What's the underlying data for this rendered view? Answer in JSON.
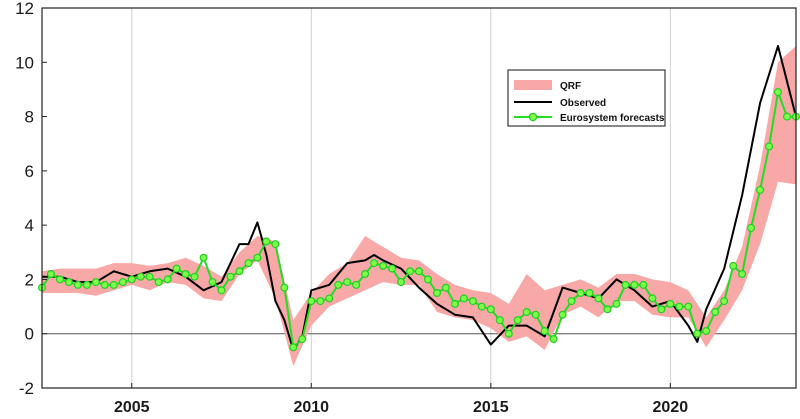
{
  "chart_data": {
    "type": "line",
    "title": "",
    "xlabel": "",
    "ylabel": "",
    "xlim": [
      2002.5,
      2023.5
    ],
    "ylim": [
      -2,
      12
    ],
    "yticks": [
      -2,
      0,
      2,
      4,
      6,
      8,
      10,
      12
    ],
    "xticks": [
      2005,
      2010,
      2015,
      2020
    ],
    "grid": "vertical",
    "legend_position": "upper-right",
    "colors": {
      "band": "#f9a8a8",
      "observed": "#000000",
      "forecast": "#22dd22",
      "forecast_marker": "#7cff4a"
    },
    "series": [
      {
        "name": "QRF",
        "kind": "band",
        "x": [
          2002.5,
          2003.0,
          2003.5,
          2004.0,
          2004.5,
          2005.0,
          2005.5,
          2006.0,
          2006.5,
          2007.0,
          2007.5,
          2008.0,
          2008.5,
          2009.0,
          2009.5,
          2010.0,
          2010.5,
          2011.0,
          2011.5,
          2012.0,
          2012.5,
          2013.0,
          2013.5,
          2014.0,
          2014.5,
          2015.0,
          2015.5,
          2016.0,
          2016.5,
          2017.0,
          2017.5,
          2018.0,
          2018.5,
          2019.0,
          2019.5,
          2020.0,
          2020.5,
          2021.0,
          2021.5,
          2022.0,
          2022.5,
          2023.0,
          2023.5
        ],
        "lower": [
          1.5,
          1.5,
          1.5,
          1.4,
          1.6,
          1.8,
          1.6,
          1.9,
          1.8,
          1.3,
          1.2,
          2.2,
          2.7,
          1.3,
          -1.2,
          0.3,
          1.0,
          1.3,
          1.6,
          1.9,
          1.8,
          1.8,
          0.8,
          0.6,
          0.5,
          0.2,
          -0.3,
          -0.1,
          -0.6,
          0.7,
          1.0,
          0.6,
          1.2,
          1.2,
          0.7,
          0.6,
          0.6,
          -0.5,
          0.5,
          1.6,
          3.3,
          5.6,
          5.5
        ],
        "upper": [
          2.3,
          2.4,
          2.4,
          2.4,
          2.6,
          2.6,
          2.5,
          2.6,
          2.8,
          2.5,
          2.1,
          3.0,
          3.6,
          3.4,
          0.5,
          1.5,
          2.2,
          2.6,
          3.6,
          3.2,
          2.8,
          2.7,
          2.2,
          1.8,
          1.6,
          1.5,
          1.1,
          2.2,
          1.6,
          1.8,
          2.0,
          1.7,
          2.2,
          2.2,
          2.0,
          1.9,
          1.6,
          0.6,
          1.6,
          3.2,
          6.2,
          10.0,
          10.6
        ]
      },
      {
        "name": "Observed",
        "x": [
          2002.5,
          2003.0,
          2003.5,
          2004.0,
          2004.5,
          2005.0,
          2005.5,
          2006.0,
          2006.5,
          2007.0,
          2007.5,
          2008.0,
          2008.25,
          2008.5,
          2008.75,
          2009.0,
          2009.25,
          2009.5,
          2009.75,
          2010.0,
          2010.5,
          2011.0,
          2011.5,
          2011.75,
          2012.0,
          2012.5,
          2013.0,
          2013.5,
          2014.0,
          2014.5,
          2015.0,
          2015.5,
          2016.0,
          2016.5,
          2017.0,
          2017.5,
          2018.0,
          2018.5,
          2019.0,
          2019.5,
          2020.0,
          2020.5,
          2020.75,
          2021.0,
          2021.5,
          2022.0,
          2022.5,
          2023.0,
          2023.5
        ],
        "values": [
          2.1,
          2.1,
          1.9,
          1.9,
          2.3,
          2.1,
          2.3,
          2.4,
          2.1,
          1.6,
          1.9,
          3.3,
          3.3,
          4.1,
          2.9,
          1.2,
          0.5,
          -0.6,
          -0.1,
          1.6,
          1.8,
          2.6,
          2.7,
          2.9,
          2.7,
          2.4,
          1.7,
          1.1,
          0.7,
          0.6,
          -0.4,
          0.3,
          0.3,
          -0.1,
          1.7,
          1.5,
          1.3,
          2.0,
          1.6,
          1.0,
          1.2,
          0.3,
          -0.3,
          0.9,
          2.4,
          5.1,
          8.5,
          10.6,
          8.0
        ]
      },
      {
        "name": "Eurosystem forecasts",
        "x": [
          2002.5,
          2002.75,
          2003.0,
          2003.25,
          2003.5,
          2003.75,
          2004.0,
          2004.25,
          2004.5,
          2004.75,
          2005.0,
          2005.25,
          2005.5,
          2005.75,
          2006.0,
          2006.25,
          2006.5,
          2006.75,
          2007.0,
          2007.25,
          2007.5,
          2007.75,
          2008.0,
          2008.25,
          2008.5,
          2008.75,
          2009.0,
          2009.25,
          2009.5,
          2009.75,
          2010.0,
          2010.25,
          2010.5,
          2010.75,
          2011.0,
          2011.25,
          2011.5,
          2011.75,
          2012.0,
          2012.25,
          2012.5,
          2012.75,
          2013.0,
          2013.25,
          2013.5,
          2013.75,
          2014.0,
          2014.25,
          2014.5,
          2014.75,
          2015.0,
          2015.25,
          2015.5,
          2015.75,
          2016.0,
          2016.25,
          2016.5,
          2016.75,
          2017.0,
          2017.25,
          2017.5,
          2017.75,
          2018.0,
          2018.25,
          2018.5,
          2018.75,
          2019.0,
          2019.25,
          2019.5,
          2019.75,
          2020.0,
          2020.25,
          2020.5,
          2020.75,
          2021.0,
          2021.25,
          2021.5,
          2021.75,
          2022.0,
          2022.25,
          2022.5,
          2022.75,
          2023.0,
          2023.25,
          2023.5
        ],
        "values": [
          1.7,
          2.2,
          2.0,
          1.9,
          1.8,
          1.8,
          1.9,
          1.8,
          1.8,
          1.9,
          2.0,
          2.1,
          2.1,
          1.9,
          2.0,
          2.4,
          2.2,
          2.1,
          2.8,
          1.9,
          1.6,
          2.1,
          2.3,
          2.6,
          2.8,
          3.4,
          3.3,
          1.7,
          -0.5,
          -0.2,
          1.2,
          1.2,
          1.3,
          1.8,
          1.9,
          1.8,
          2.2,
          2.6,
          2.5,
          2.4,
          1.9,
          2.3,
          2.3,
          2.0,
          1.5,
          1.7,
          1.1,
          1.3,
          1.2,
          1.0,
          0.9,
          0.5,
          0.0,
          0.5,
          0.8,
          0.7,
          0.1,
          -0.2,
          0.7,
          1.2,
          1.5,
          1.5,
          1.3,
          0.9,
          1.1,
          1.8,
          1.8,
          1.8,
          1.3,
          0.9,
          1.1,
          1.0,
          1.0,
          0.0,
          0.1,
          0.8,
          1.2,
          2.5,
          2.2,
          3.9,
          5.3,
          6.9,
          8.9,
          8.0,
          8.0
        ]
      }
    ]
  }
}
